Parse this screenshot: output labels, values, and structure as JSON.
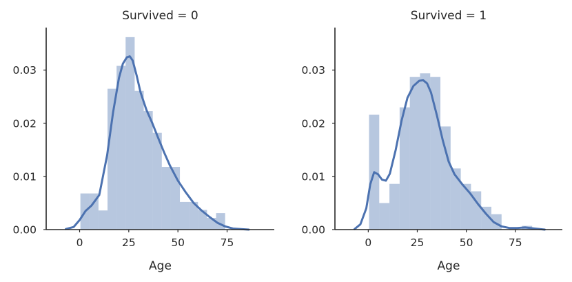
{
  "chart_data": [
    {
      "type": "histogram",
      "title": "Survived = 0",
      "xlabel": "Age",
      "ylabel": "",
      "xlim": [
        -17,
        99
      ],
      "ylim": [
        0,
        0.038
      ],
      "xticks": [
        0,
        25,
        50,
        75
      ],
      "yticks": [
        0.0,
        0.01,
        0.02,
        0.03
      ],
      "grid": false,
      "bin_width": 4.6,
      "bins": [
        {
          "x0": 0.4,
          "x1": 5.0,
          "density": 0.0068
        },
        {
          "x0": 5.0,
          "x1": 9.6,
          "density": 0.0068
        },
        {
          "x0": 9.6,
          "x1": 14.2,
          "density": 0.0036
        },
        {
          "x0": 14.2,
          "x1": 18.8,
          "density": 0.0265
        },
        {
          "x0": 18.8,
          "x1": 23.4,
          "density": 0.0308
        },
        {
          "x0": 23.4,
          "x1": 28.0,
          "density": 0.0362
        },
        {
          "x0": 28.0,
          "x1": 32.6,
          "density": 0.0261
        },
        {
          "x0": 32.6,
          "x1": 37.2,
          "density": 0.0223
        },
        {
          "x0": 37.2,
          "x1": 41.8,
          "density": 0.0182
        },
        {
          "x0": 41.8,
          "x1": 46.4,
          "density": 0.0118
        },
        {
          "x0": 46.4,
          "x1": 51.0,
          "density": 0.0118
        },
        {
          "x0": 51.0,
          "x1": 55.6,
          "density": 0.0052
        },
        {
          "x0": 55.6,
          "x1": 60.2,
          "density": 0.0052
        },
        {
          "x0": 60.2,
          "x1": 64.8,
          "density": 0.0037
        },
        {
          "x0": 64.8,
          "x1": 69.4,
          "density": 0.0022
        },
        {
          "x0": 69.4,
          "x1": 74.0,
          "density": 0.0031
        }
      ],
      "kde": {
        "x": [
          -7,
          -3,
          0,
          3,
          6,
          10,
          14,
          17,
          20,
          22,
          24,
          25.5,
          27,
          29,
          31,
          34,
          37,
          40,
          43,
          46,
          50,
          54,
          58,
          62,
          66,
          70,
          74,
          78,
          82,
          86
        ],
        "y": [
          0.0001,
          0.0005,
          0.0018,
          0.0035,
          0.0045,
          0.0065,
          0.014,
          0.022,
          0.0285,
          0.0312,
          0.0324,
          0.0326,
          0.0318,
          0.029,
          0.0258,
          0.0225,
          0.02,
          0.0172,
          0.0145,
          0.012,
          0.0092,
          0.007,
          0.005,
          0.0036,
          0.0024,
          0.0013,
          0.0006,
          0.0002,
          0.0001,
          0.0
        ]
      }
    },
    {
      "type": "histogram",
      "title": "Survived = 1",
      "xlabel": "Age",
      "ylabel": "",
      "xlim": [
        -17,
        99
      ],
      "ylim": [
        0,
        0.038
      ],
      "xticks": [
        0,
        25,
        50,
        75
      ],
      "yticks": [
        0.0,
        0.01,
        0.02,
        0.03
      ],
      "grid": false,
      "bin_width": 5.2,
      "bins": [
        {
          "x0": 0.4,
          "x1": 5.6,
          "density": 0.0216
        },
        {
          "x0": 5.6,
          "x1": 10.8,
          "density": 0.005
        },
        {
          "x0": 10.8,
          "x1": 16.0,
          "density": 0.0086
        },
        {
          "x0": 16.0,
          "x1": 21.2,
          "density": 0.023
        },
        {
          "x0": 21.2,
          "x1": 26.4,
          "density": 0.0287
        },
        {
          "x0": 26.4,
          "x1": 31.6,
          "density": 0.0294
        },
        {
          "x0": 31.6,
          "x1": 36.8,
          "density": 0.0287
        },
        {
          "x0": 36.8,
          "x1": 42.0,
          "density": 0.0194
        },
        {
          "x0": 42.0,
          "x1": 47.2,
          "density": 0.0115
        },
        {
          "x0": 47.2,
          "x1": 52.4,
          "density": 0.0086
        },
        {
          "x0": 52.4,
          "x1": 57.6,
          "density": 0.0072
        },
        {
          "x0": 57.6,
          "x1": 62.8,
          "density": 0.0043
        },
        {
          "x0": 62.8,
          "x1": 68.0,
          "density": 0.0029
        },
        {
          "x0": 78.4,
          "x1": 83.6,
          "density": 0.0007
        }
      ],
      "kde": {
        "x": [
          -7,
          -4,
          -1,
          1,
          3,
          5,
          7,
          9,
          11,
          14,
          17,
          20,
          23,
          26,
          28,
          30,
          32,
          35,
          38,
          41,
          44,
          48,
          52,
          56,
          60,
          64,
          68,
          72,
          76,
          80,
          85,
          90
        ],
        "y": [
          0.0001,
          0.001,
          0.004,
          0.0085,
          0.0108,
          0.0104,
          0.0094,
          0.0092,
          0.0105,
          0.015,
          0.0205,
          0.0248,
          0.027,
          0.028,
          0.0281,
          0.0275,
          0.0258,
          0.0215,
          0.0168,
          0.0128,
          0.0104,
          0.0085,
          0.0068,
          0.0048,
          0.003,
          0.0014,
          0.0006,
          0.0003,
          0.0003,
          0.0004,
          0.0002,
          0.0
        ]
      }
    }
  ]
}
